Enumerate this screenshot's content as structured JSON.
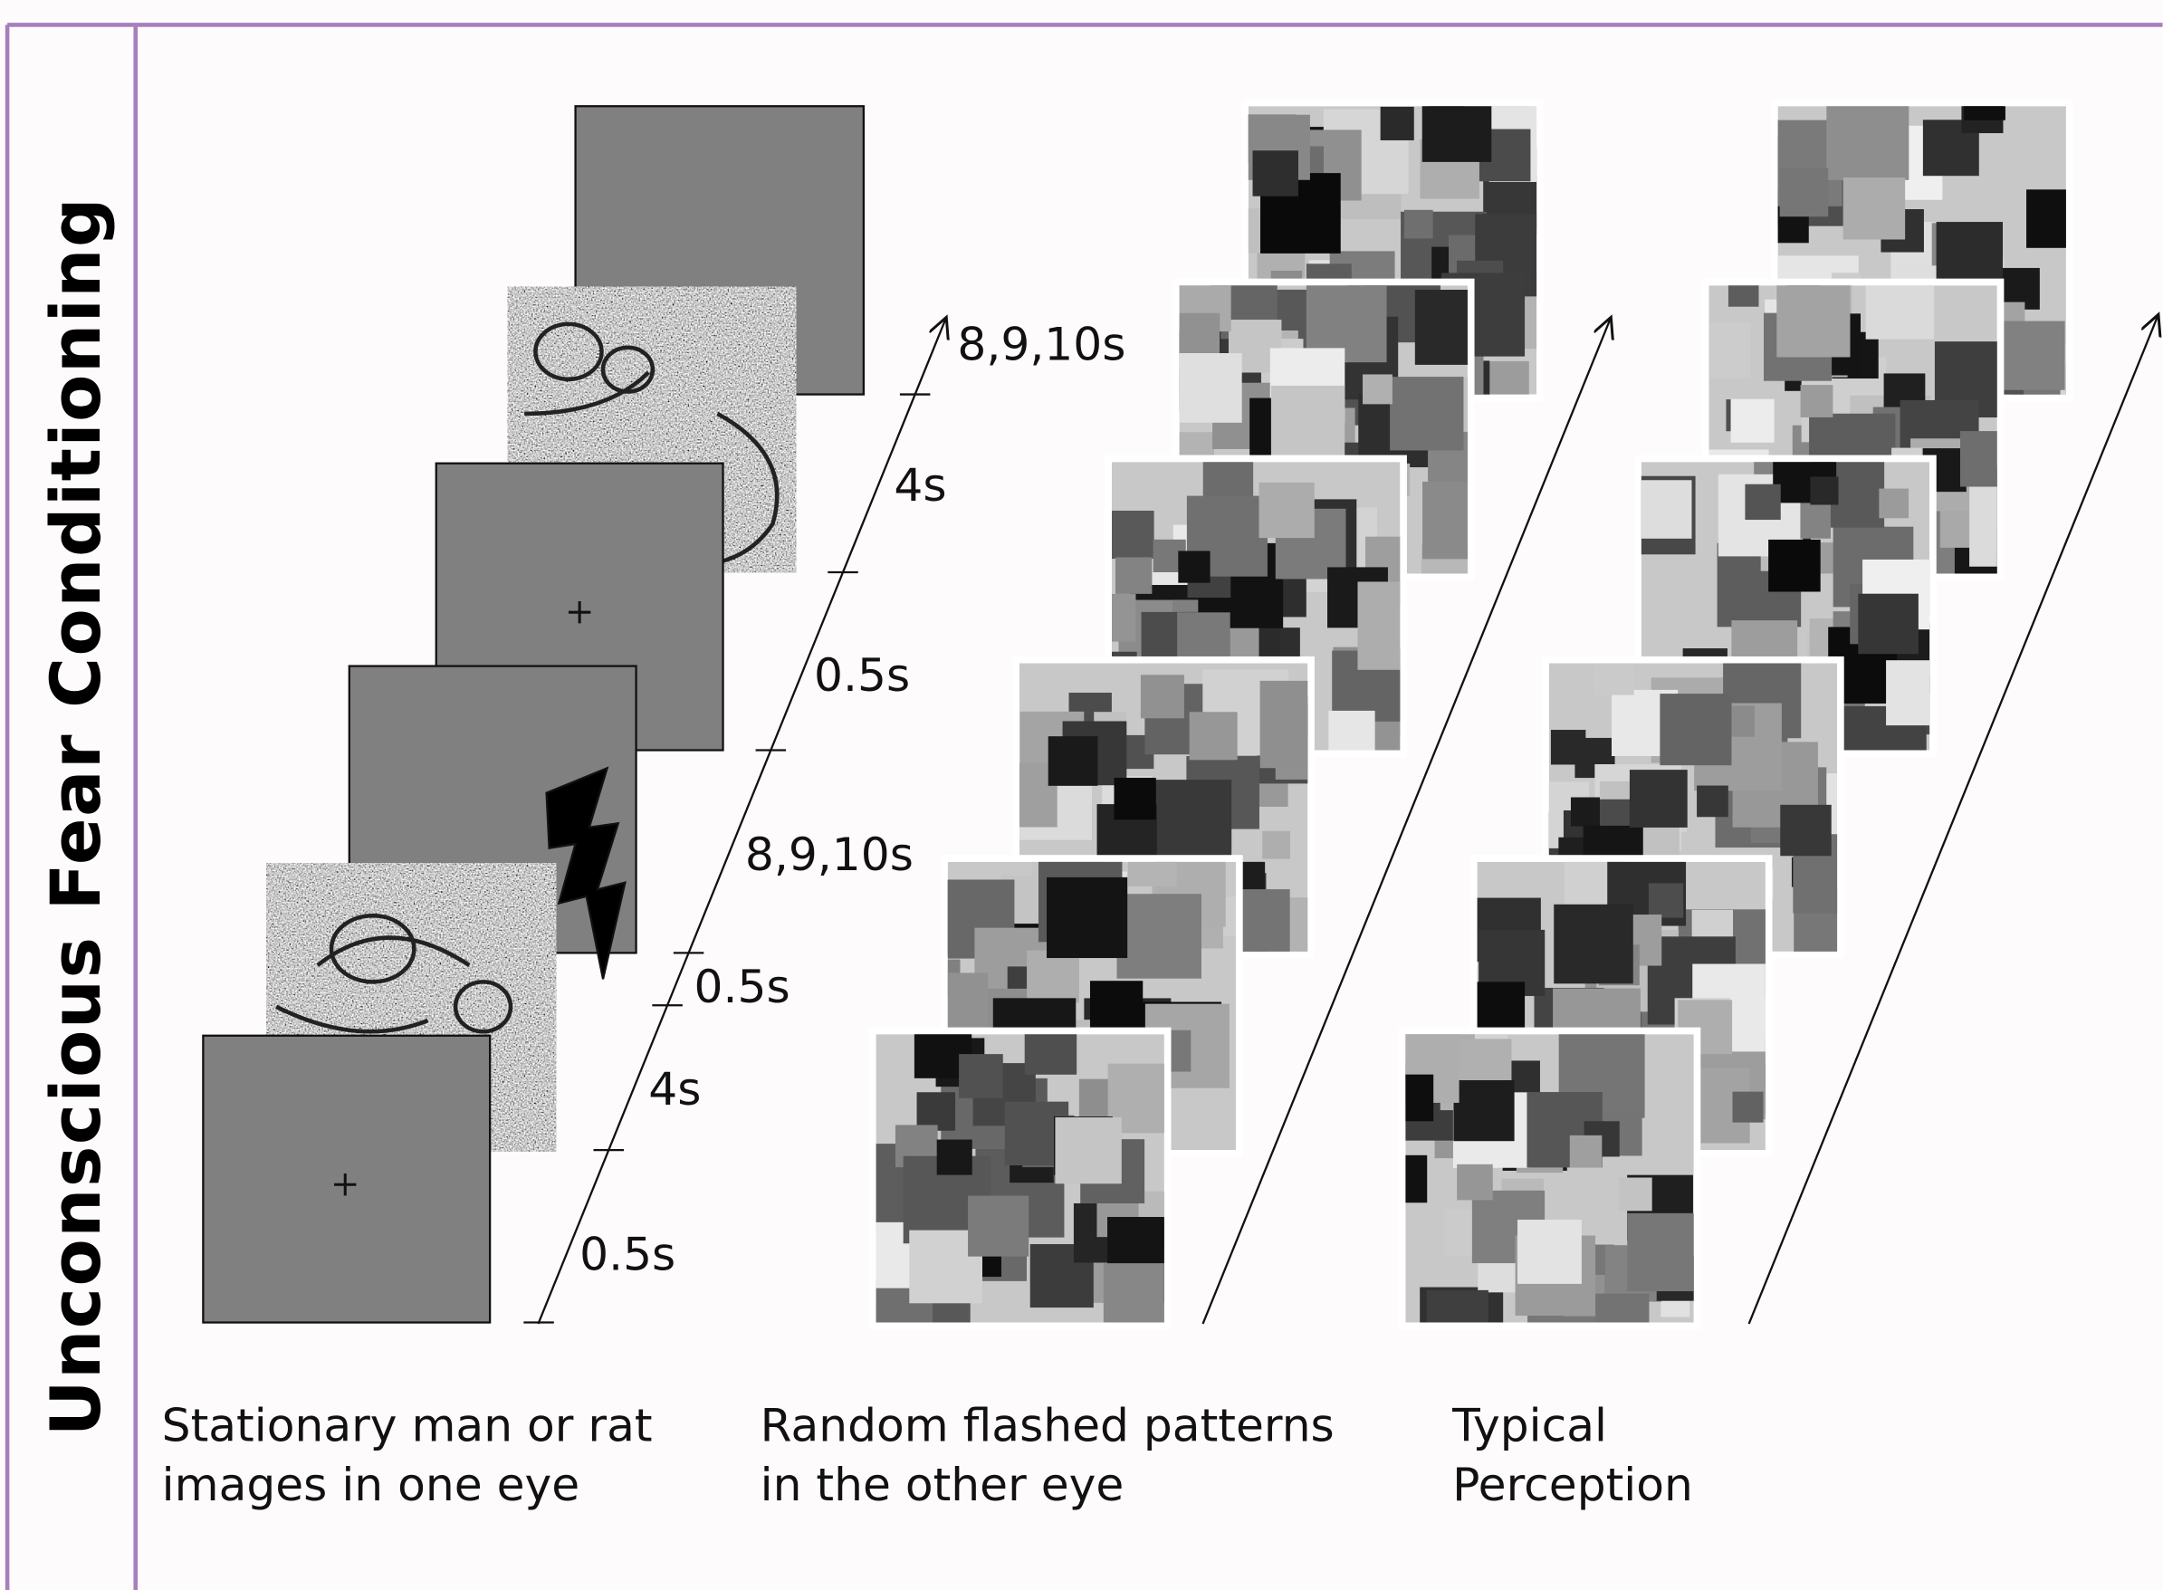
{
  "title": "Unconscious Fear Conditioning",
  "timeline": {
    "labels": [
      "8,9,10s",
      "4s",
      "0.5s",
      "8,9,10s",
      "0.5s",
      "4s",
      "0.5s"
    ]
  },
  "captions": [
    {
      "lines": [
        "Stationary man or rat",
        "images in one eye"
      ]
    },
    {
      "lines": [
        "Random flashed patterns",
        "in the other eye"
      ]
    },
    {
      "lines": [
        "Typical",
        "Perception"
      ]
    }
  ]
}
